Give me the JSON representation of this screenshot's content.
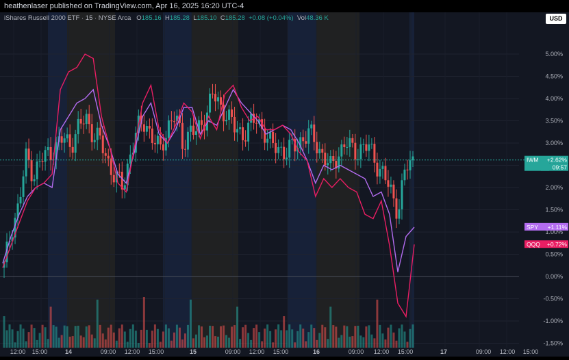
{
  "header": {
    "attribution": "heathenlaser published on TradingView.com, Apr 16, 2025 16:20 UTC-4"
  },
  "legend": {
    "symbol": "iShares Russell 2000 ETF · 15 · NYSE Arca",
    "o_label": "O",
    "o_value": "185.16",
    "h_label": "H",
    "h_value": "185.28",
    "l_label": "L",
    "l_value": "185.10",
    "c_label": "C",
    "c_value": "185.28",
    "change": "+0.08 (+0.04%)",
    "vol_label": "Vol",
    "vol_value": "48.36 K"
  },
  "currency": "USD",
  "colors": {
    "background": "#131722",
    "up": "#26a69a",
    "down": "#ef5350",
    "spy": "#b36cf0",
    "qqq": "#e91e63",
    "night_session": "#1b2a4a",
    "pre_market": "#2b2a22"
  },
  "chart_data": {
    "type": "line",
    "title": "",
    "y_axis_ticks": [
      "5.00%",
      "4.50%",
      "4.00%",
      "3.50%",
      "3.00%",
      "2.50%",
      "2.00%",
      "1.50%",
      "1.00%",
      "0.50%",
      "0.00%",
      "-0.50%",
      "-1.00%",
      "-1.50%"
    ],
    "x_axis_ticks": [
      "12:00",
      "15:00",
      "14",
      "09:00",
      "12:00",
      "15:00",
      "15",
      "09:00",
      "12:00",
      "15:00",
      "16",
      "09:00",
      "12:00",
      "15:00",
      "17",
      "09:00",
      "12:00",
      "15:00"
    ],
    "ylim": [
      -1.6,
      5.6
    ],
    "price_labels": [
      {
        "symbol": "IWM",
        "change": "+2.62%",
        "countdown": "09:57",
        "color": "#26a69a",
        "level": 2.62
      },
      {
        "symbol": "SPY",
        "change": "+1.11%",
        "color": "#b36cf0",
        "level": 1.11
      },
      {
        "symbol": "QQQ",
        "change": "+0.72%",
        "color": "#e91e63",
        "level": 0.72
      }
    ],
    "series": [
      {
        "name": "IWM",
        "style": "candles",
        "values": [
          0.2,
          1.1,
          1.6,
          2.7,
          2.3,
          2.6,
          2.8,
          2.9,
          3.1,
          3.0,
          3.3,
          3.6,
          3.2,
          3.0,
          2.6,
          2.2,
          2.0,
          2.8,
          3.3,
          3.5,
          3.1,
          2.8,
          3.4,
          3.6,
          3.0,
          3.3,
          3.2,
          3.6,
          4.1,
          3.8,
          3.7,
          3.3,
          3.2,
          3.4,
          3.5,
          3.3,
          2.9,
          2.9,
          2.8,
          2.9,
          3.1,
          3.2,
          3.0,
          2.7,
          2.4,
          2.8,
          3.0,
          2.8,
          2.9,
          2.9,
          2.6,
          2.3,
          1.9,
          1.5,
          2.4,
          2.6
        ]
      },
      {
        "name": "SPY",
        "style": "line",
        "values": [
          0.3,
          0.9,
          1.4,
          1.8,
          2.0,
          2.1,
          2.0,
          3.3,
          3.6,
          3.9,
          4.0,
          4.2,
          3.4,
          2.9,
          2.3,
          2.1,
          2.8,
          3.6,
          3.9,
          3.2,
          3.0,
          3.3,
          3.8,
          3.8,
          3.2,
          3.5,
          3.4,
          3.8,
          4.2,
          3.9,
          3.7,
          3.5,
          3.2,
          3.3,
          3.4,
          3.3,
          3.0,
          2.6,
          2.1,
          2.5,
          2.4,
          2.5,
          2.4,
          2.3,
          2.2,
          1.8,
          1.9,
          1.4,
          0.1,
          0.9,
          1.11
        ]
      },
      {
        "name": "QQQ",
        "style": "line",
        "values": [
          0.2,
          0.7,
          1.2,
          1.7,
          2.0,
          2.1,
          2.3,
          4.2,
          4.6,
          4.7,
          5.0,
          4.9,
          3.6,
          2.9,
          2.1,
          1.9,
          2.9,
          3.9,
          4.3,
          3.3,
          3.0,
          3.4,
          3.9,
          3.7,
          3.1,
          3.6,
          3.3,
          4.1,
          4.3,
          3.8,
          3.5,
          3.6,
          3.3,
          3.3,
          3.4,
          3.2,
          2.8,
          2.6,
          1.8,
          2.2,
          2.0,
          2.2,
          2.0,
          1.9,
          1.4,
          1.3,
          1.7,
          0.7,
          -0.6,
          -0.9,
          0.72
        ]
      }
    ]
  }
}
